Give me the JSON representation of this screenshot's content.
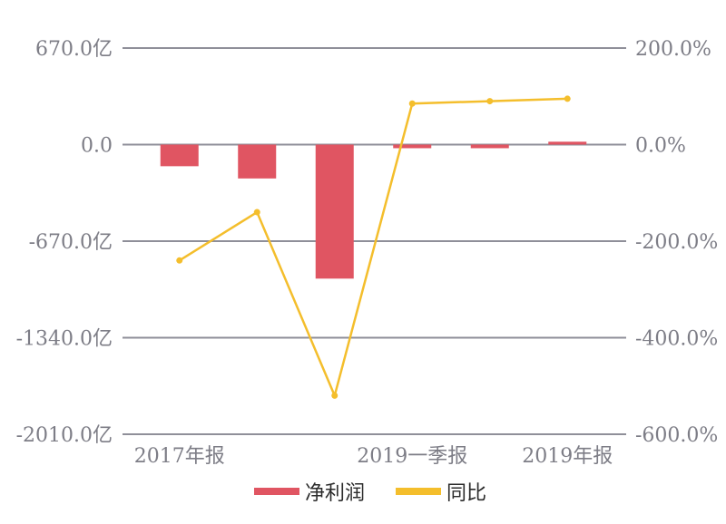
{
  "chart_data": {
    "type": "bar",
    "categories": [
      "2017年报",
      "",
      "",
      "2019一季报",
      "",
      "2019年报"
    ],
    "series": [
      {
        "name": "净利润",
        "kind": "bar",
        "axis": "left",
        "color": "#e05562",
        "values": [
          -150,
          -235,
          -930,
          -25,
          -25,
          20
        ]
      },
      {
        "name": "同比",
        "kind": "line",
        "axis": "right",
        "color": "#f4be2c",
        "values": [
          -240,
          -140,
          -520,
          85,
          90,
          95
        ]
      }
    ],
    "y_left": {
      "ticks": [
        670,
        0,
        -670,
        -1340,
        -2010
      ],
      "tick_labels": [
        "670.0亿",
        "0.0",
        "-670.0亿",
        "-1340.0亿",
        "-2010.0亿"
      ],
      "ylim": [
        -2010,
        670
      ]
    },
    "y_right": {
      "ticks": [
        200,
        0,
        -200,
        -400,
        -600
      ],
      "tick_labels": [
        "200.0%",
        "0.0%",
        "-200.0%",
        "-400.0%",
        "-600.0%"
      ],
      "ylim": [
        -600,
        200
      ]
    },
    "xtick_labels": [
      "2017年报",
      "2019一季报",
      "2019年报"
    ],
    "xtick_label_categories": [
      0,
      3,
      5
    ],
    "grid": true,
    "legend_position": "bottom-center",
    "colors": {
      "grid": "#8f8f99",
      "zero_line": "#8f8f99",
      "tick_text": "#7d7d86"
    }
  }
}
